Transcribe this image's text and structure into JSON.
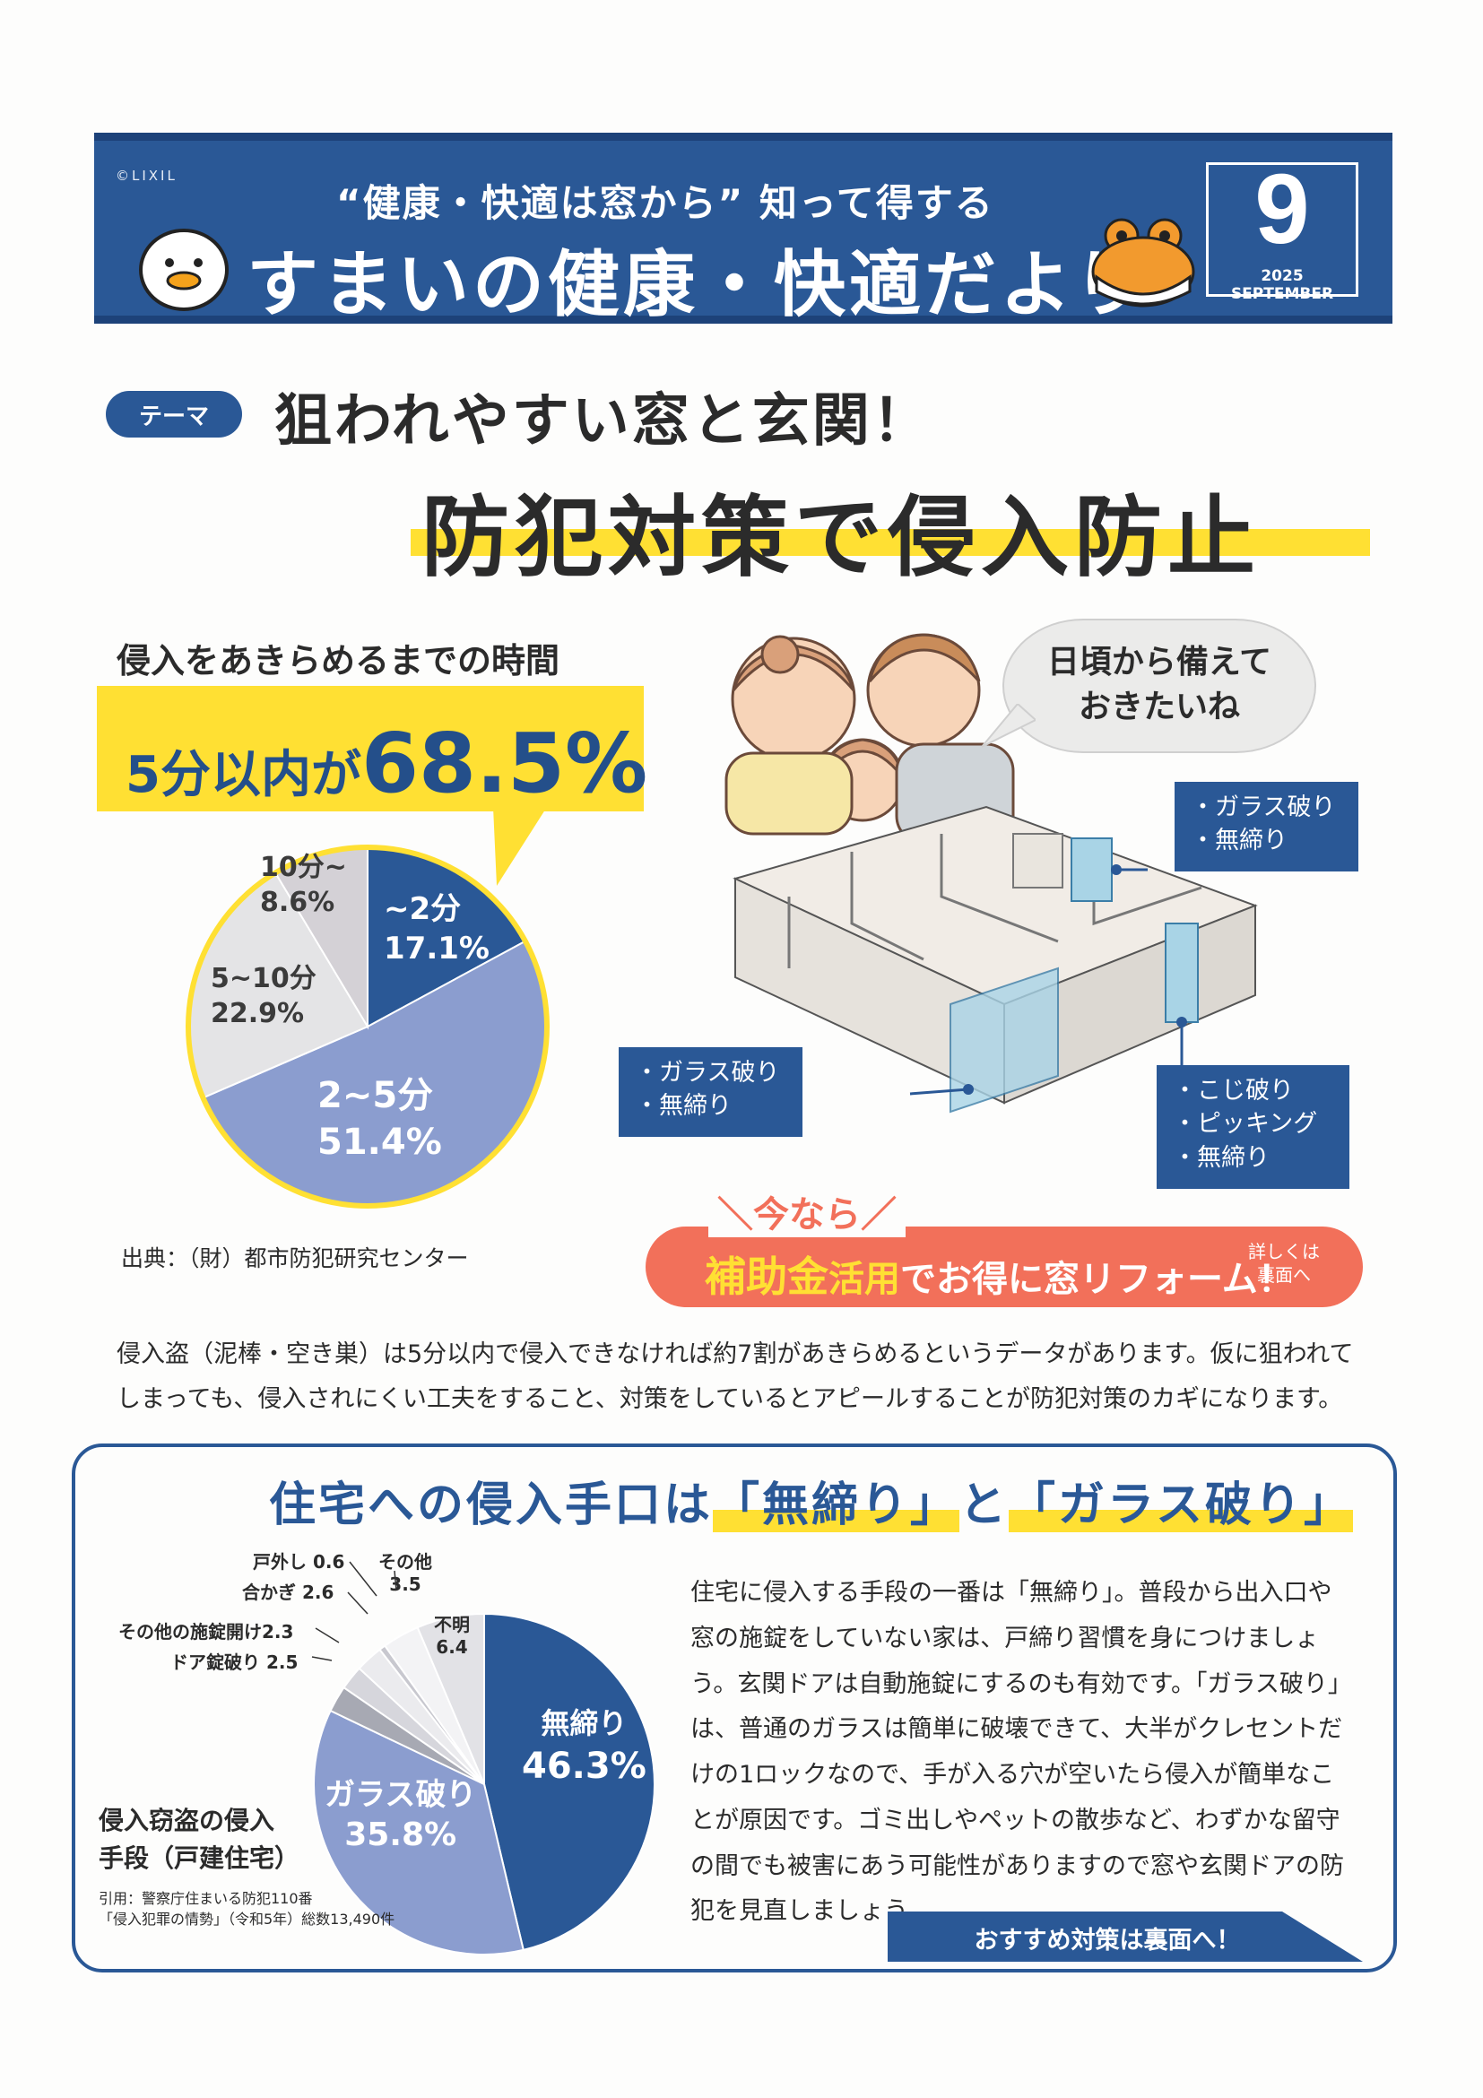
{
  "header": {
    "copyright": "©LIXIL",
    "tagline": "“健康・快適は窓から” 知って得する",
    "title": "すまいの健康・快適だより",
    "issue_number": "9",
    "issue_date": "2025 SEPTEMBER"
  },
  "theme": {
    "badge": "テーマ",
    "line1": "狙われやすい窓と玄関！",
    "line2": "防犯対策で侵入防止"
  },
  "pie1": {
    "heading": "侵入をあきらめるまでの時間",
    "callout_prefix": "5分以内が",
    "callout_value": "68.5%",
    "source": "出典：（財）都市防犯研究センター"
  },
  "illustration": {
    "speech": "日頃から備えて\nおきたいね",
    "callout_window_top": "・ガラス破り\n・無締り",
    "callout_window_left": "・ガラス破り\n・無締り",
    "callout_door": "・こじ破り\n・ピッキング\n・無締り"
  },
  "subsidy": {
    "tag": "＼今なら／",
    "highlight": "補助金",
    "mid": "活用",
    "main": "でお得に窓リフォーム！",
    "note": "詳しくは\n裏面へ"
  },
  "intro_text": "侵入盗（泥棒・空き巣）は5分以内で侵入できなければ約7割があきらめるというデータがあります。仮に狙われてしまっても、侵入されにくい工夫をすること、対策をしているとアピールすることが防犯対策のカギになります。",
  "box": {
    "heading_prefix": "住宅への侵入手口は",
    "heading_hl1": "「無締り」",
    "heading_mid": "と",
    "heading_hl2": "「ガラス破り」",
    "caption": "侵入窃盗の侵入\n手段（戸建住宅）",
    "cite": "引用：警察庁住まいる防犯110番\n「侵入犯罪の情勢」（令和5年）総数13,490件",
    "body": "住宅に侵入する手段の一番は「無締り」。普段から出入口や窓の施錠をしていない家は、戸締り習慣を身につけましょう。玄関ドアは自動施錠にするのも有効です。「ガラス破り」は、普通のガラスは簡単に破壊できて、大半がクレセントだけの1ロックなので、手が入る穴が空いたら侵入が簡単なことが原因です。ゴミ出しやペットの散歩など、わずかな留守の間でも被害にあう可能性がありますので窓や玄関ドアの防犯を見直しましょう。",
    "arrow_label": "おすすめ対策は裏面へ！"
  },
  "chart_data": [
    {
      "type": "pie",
      "title": "侵入をあきらめるまでの時間",
      "slices": [
        {
          "label": "~2分",
          "value": 17.1,
          "display": "17.1%",
          "color": "#2a5896"
        },
        {
          "label": "2~5分",
          "value": 51.4,
          "display": "51.4%",
          "color": "#8b9dcf"
        },
        {
          "label": "5~10分",
          "value": 22.9,
          "display": "22.9%",
          "color": "#e4e4e6"
        },
        {
          "label": "10分~",
          "value": 8.6,
          "display": "8.6%",
          "color": "#d4d1d6"
        }
      ]
    },
    {
      "type": "pie",
      "title": "侵入窃盗の侵入手段（戸建住宅）",
      "slices": [
        {
          "label": "無締り",
          "value": 46.3,
          "display": "46.3%",
          "color": "#2a5896"
        },
        {
          "label": "ガラス破り",
          "value": 35.8,
          "display": "35.8%",
          "color": "#8b9dcf"
        },
        {
          "label": "ドア錠破り",
          "value": 2.5,
          "display": "2.5",
          "color": "#a7a9b3"
        },
        {
          "label": "その他の施錠開け",
          "value": 2.3,
          "display": "2.3",
          "color": "#d6d6dc"
        },
        {
          "label": "合かぎ",
          "value": 2.6,
          "display": "2.6",
          "color": "#ebebee"
        },
        {
          "label": "戸外し",
          "value": 0.6,
          "display": "0.6",
          "color": "#c8c8cf"
        },
        {
          "label": "その他",
          "value": 3.5,
          "display": "3.5",
          "color": "#f3f3f5"
        },
        {
          "label": "不明",
          "value": 6.4,
          "display": "6.4",
          "color": "#e2e2e6"
        }
      ]
    }
  ]
}
